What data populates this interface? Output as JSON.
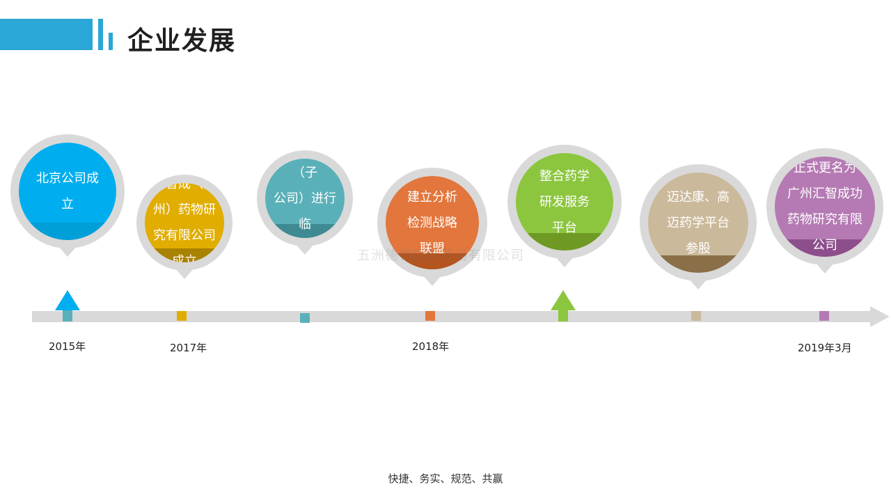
{
  "header": {
    "title": "企业发展"
  },
  "watermark": "五洲德物国际贸易有限公司",
  "footer": {
    "slogan": "快捷、务实、规范、共赢"
  },
  "timeline": {
    "years": [
      "2015年",
      "2017年",
      "2018年",
      "2019年3月"
    ],
    "milestones": [
      {
        "text": "北京公司成立",
        "color": "#00aeef",
        "shade": "#009fd8"
      },
      {
        "text": "汇智成（广州）药物研究有限公司成立",
        "color": "#e0ad00",
        "shade": "#a98200"
      },
      {
        "text": "联合smo（子公司）进行临床研发",
        "color": "#5ab0b8",
        "shade": "#3f8a92"
      },
      {
        "text": "建立分析检测战略联盟",
        "color": "#e2763c",
        "shade": "#b4541f"
      },
      {
        "text": "整合药学研发服务平台",
        "color": "#8cc63f",
        "shade": "#6e9a24"
      },
      {
        "text": "迈达康、高迈药学平台参股",
        "color": "#cbb99b",
        "shade": "#8a7048"
      },
      {
        "text": "正式更名为广州汇智成功药物研究有限公司",
        "color": "#b57ab3",
        "shade": "#8d4f8b"
      }
    ]
  }
}
